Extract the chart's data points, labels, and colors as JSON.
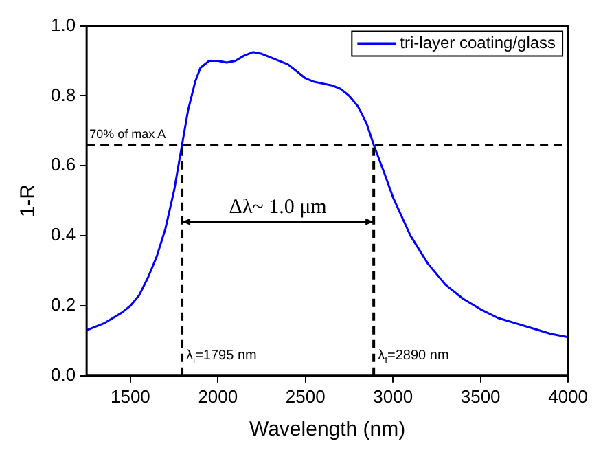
{
  "chart_data": {
    "type": "line",
    "xlabel": "Wavelength (nm)",
    "ylabel": "1-R",
    "x": [
      1250,
      1350,
      1450,
      1500,
      1550,
      1600,
      1650,
      1700,
      1750,
      1795,
      1830,
      1870,
      1900,
      1950,
      2000,
      2050,
      2100,
      2150,
      2200,
      2250,
      2300,
      2350,
      2400,
      2450,
      2500,
      2550,
      2600,
      2650,
      2700,
      2750,
      2800,
      2850,
      2890,
      2950,
      3000,
      3100,
      3200,
      3300,
      3400,
      3500,
      3600,
      3700,
      3800,
      3900,
      4000
    ],
    "series": [
      {
        "name": "tri-layer coating/glass",
        "color": "#0000ff",
        "values": [
          0.13,
          0.15,
          0.18,
          0.2,
          0.23,
          0.28,
          0.34,
          0.42,
          0.53,
          0.66,
          0.76,
          0.84,
          0.88,
          0.9,
          0.9,
          0.895,
          0.9,
          0.915,
          0.925,
          0.92,
          0.91,
          0.9,
          0.89,
          0.87,
          0.85,
          0.84,
          0.835,
          0.83,
          0.82,
          0.8,
          0.77,
          0.72,
          0.66,
          0.58,
          0.51,
          0.4,
          0.32,
          0.26,
          0.22,
          0.19,
          0.165,
          0.15,
          0.135,
          0.12,
          0.11
        ]
      }
    ],
    "xlim": [
      1250,
      4000
    ],
    "xticks": [
      1500,
      2000,
      2500,
      3000,
      3500,
      4000
    ],
    "ylim": [
      0,
      1
    ],
    "yticks": [
      {
        "value": 0,
        "label": "0.0"
      },
      0.2,
      0.4,
      0.6,
      0.8,
      {
        "value": 1,
        "label": "1.0"
      }
    ],
    "ref_lines": [
      {
        "axis": "y",
        "value": 0.66,
        "label": "70% of max A",
        "line_style": "dashed"
      },
      {
        "axis": "x",
        "value": 1795,
        "label": "λ$_{i}$=1795 nm",
        "line_style": "dashed"
      },
      {
        "axis": "x",
        "value": 2890,
        "label": "λ$_{f}$=2890 nm",
        "line_style": "dashed"
      }
    ],
    "annotations": [
      "Δλ~ 1.0 μm"
    ],
    "legend": "top right",
    "grid": false,
    "marker": "none",
    "line_style": "solid"
  }
}
